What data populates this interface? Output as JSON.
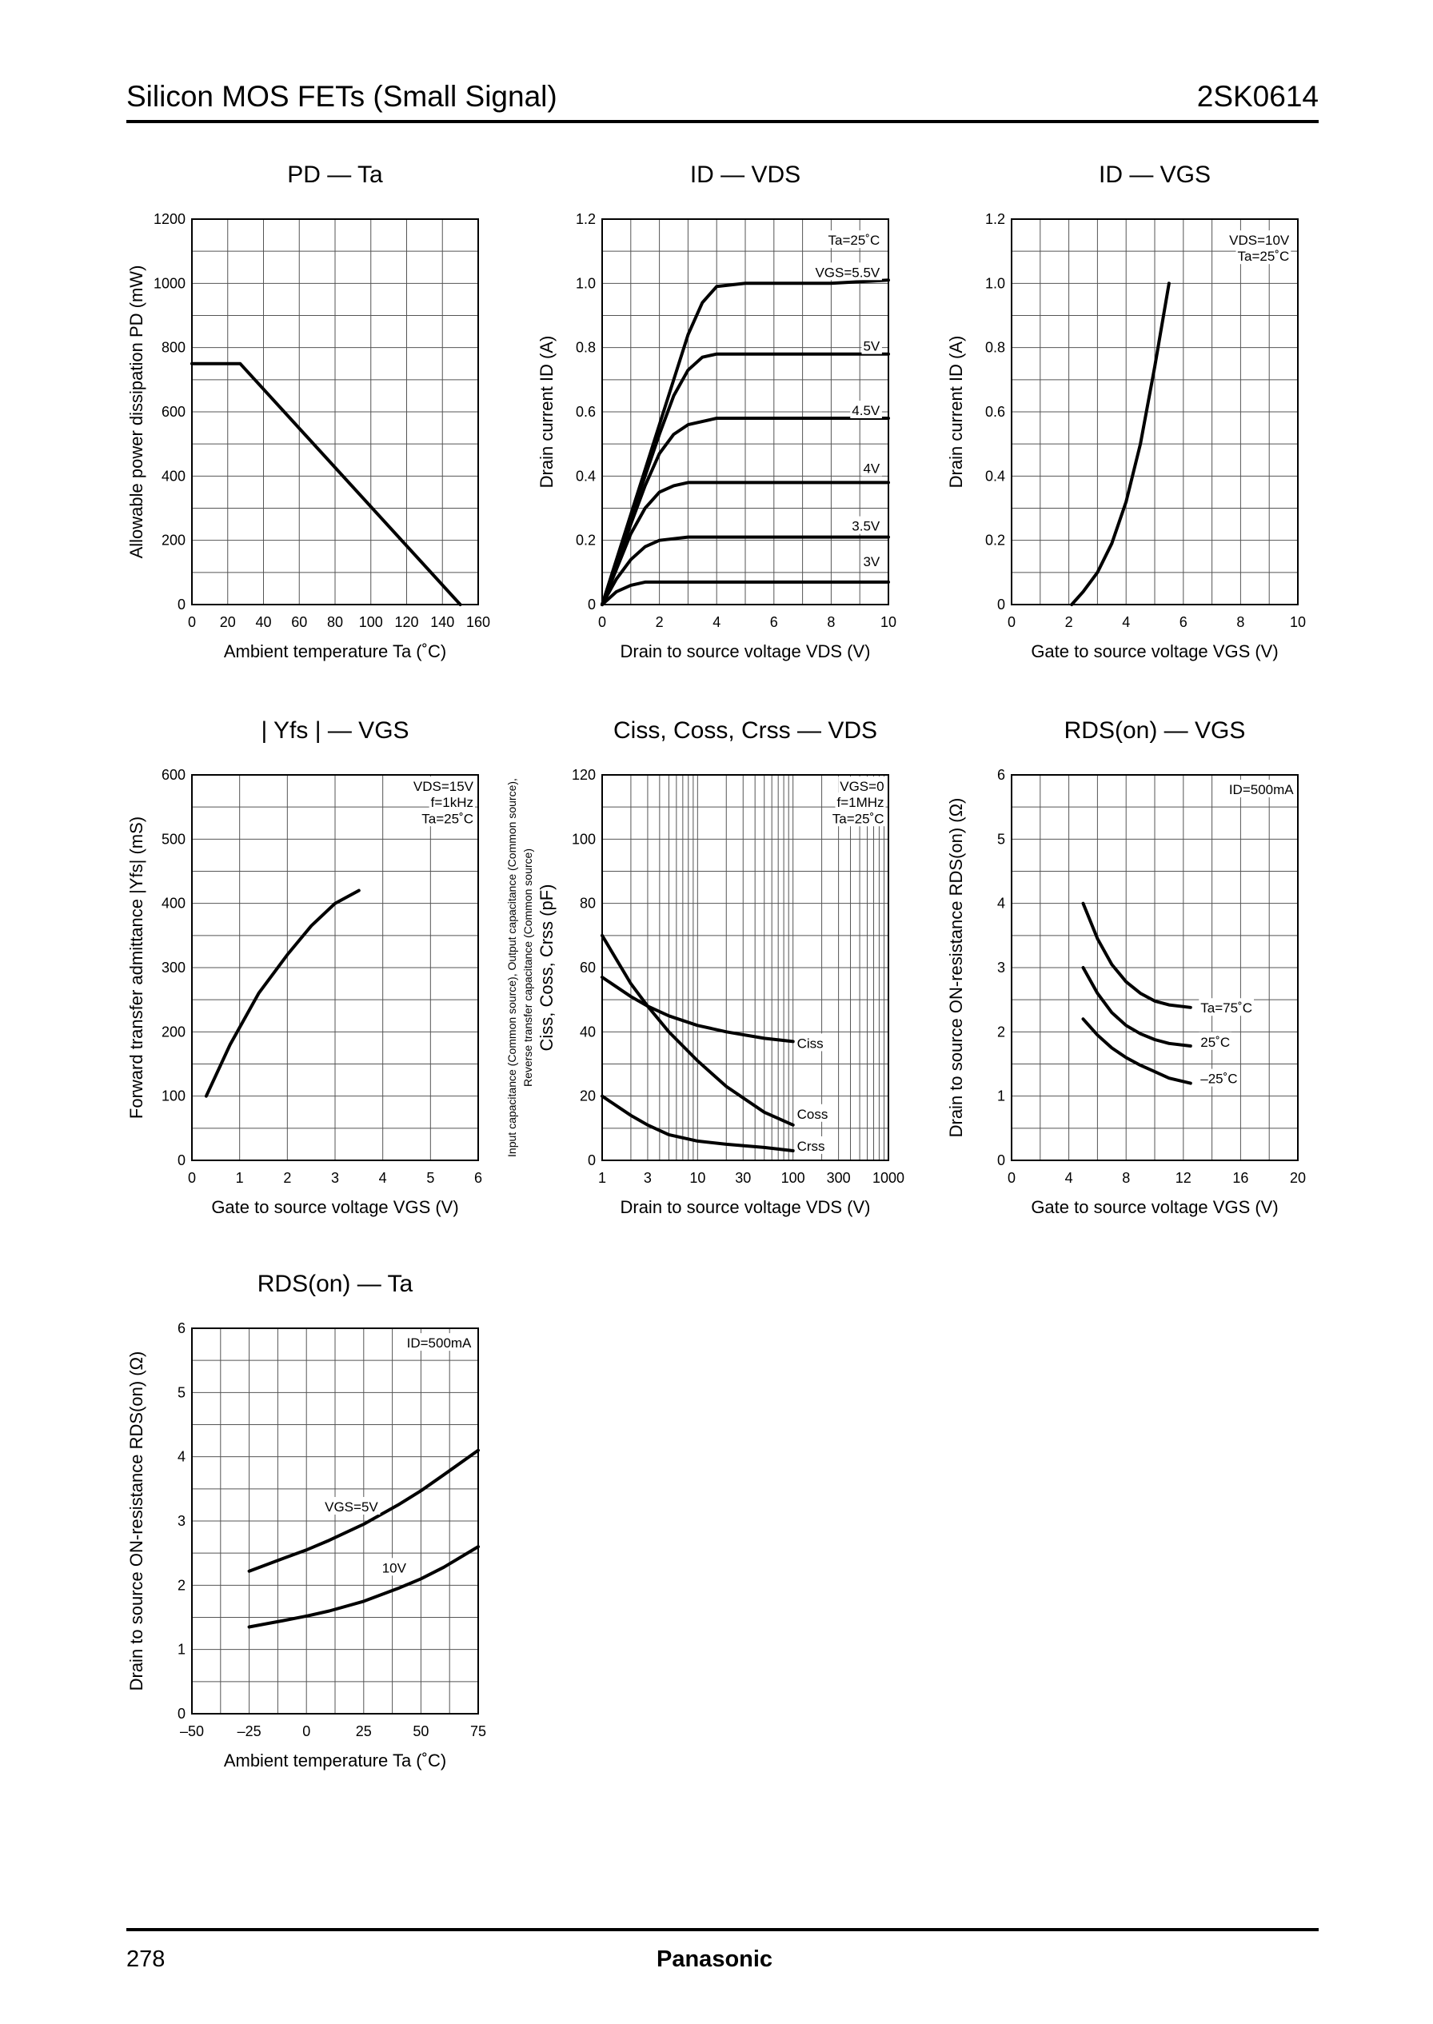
{
  "header": {
    "title": "Silicon MOS FETs (Small Signal)",
    "part_number": "2SK0614"
  },
  "footer": {
    "page_number": "278",
    "brand": "Panasonic"
  },
  "chart_data": [
    {
      "id": "pd_ta",
      "type": "line",
      "title": "PD — Ta",
      "xlabel": "Ambient temperature   Ta  (˚C)",
      "ylabel": "Allowable power dissipation   PD  (mW)",
      "xlim": [
        0,
        160
      ],
      "ylim": [
        0,
        1200
      ],
      "x_ticks": [
        "0",
        "20",
        "40",
        "60",
        "80",
        "100",
        "120",
        "140",
        "160"
      ],
      "y_ticks": [
        "0",
        "200",
        "400",
        "600",
        "800",
        "1000",
        "1200"
      ],
      "grid_cols": 8,
      "grid_rows": 12,
      "series": [
        {
          "name": "PD",
          "x": [
            0,
            27,
            150
          ],
          "y": [
            750,
            750,
            0
          ]
        }
      ],
      "annotations": []
    },
    {
      "id": "id_vds",
      "type": "line",
      "title": "ID — VDS",
      "xlabel": "Drain to source voltage   VDS  (V)",
      "ylabel": "Drain current   ID  (A)",
      "xlim": [
        0,
        10
      ],
      "ylim": [
        0,
        1.2
      ],
      "x_ticks": [
        "0",
        "2",
        "4",
        "6",
        "8",
        "10"
      ],
      "y_ticks": [
        "0",
        "0.2",
        "0.4",
        "0.6",
        "0.8",
        "1.0",
        "1.2"
      ],
      "grid_cols": 10,
      "grid_rows": 12,
      "series": [
        {
          "name": "VGS=5.5V",
          "x": [
            0,
            0.5,
            1,
            1.5,
            2,
            2.5,
            3,
            3.5,
            4,
            5,
            6,
            8,
            10
          ],
          "y": [
            0,
            0.14,
            0.28,
            0.42,
            0.56,
            0.7,
            0.84,
            0.94,
            0.99,
            1.0,
            1.0,
            1.0,
            1.01
          ]
        },
        {
          "name": "5V",
          "x": [
            0,
            0.5,
            1,
            1.5,
            2,
            2.5,
            3,
            3.5,
            4,
            5,
            6,
            8,
            10
          ],
          "y": [
            0,
            0.13,
            0.27,
            0.4,
            0.53,
            0.65,
            0.73,
            0.77,
            0.78,
            0.78,
            0.78,
            0.78,
            0.78
          ]
        },
        {
          "name": "4.5V",
          "x": [
            0,
            0.5,
            1,
            1.5,
            2,
            2.5,
            3,
            4,
            5,
            6,
            8,
            10
          ],
          "y": [
            0,
            0.12,
            0.25,
            0.37,
            0.47,
            0.53,
            0.56,
            0.58,
            0.58,
            0.58,
            0.58,
            0.58
          ]
        },
        {
          "name": "4V",
          "x": [
            0,
            0.5,
            1,
            1.5,
            2,
            2.5,
            3,
            4,
            6,
            8,
            10
          ],
          "y": [
            0,
            0.11,
            0.22,
            0.3,
            0.35,
            0.37,
            0.38,
            0.38,
            0.38,
            0.38,
            0.38
          ]
        },
        {
          "name": "3.5V",
          "x": [
            0,
            0.5,
            1,
            1.5,
            2,
            3,
            4,
            6,
            8,
            10
          ],
          "y": [
            0,
            0.08,
            0.14,
            0.18,
            0.2,
            0.21,
            0.21,
            0.21,
            0.21,
            0.21
          ]
        },
        {
          "name": "3V",
          "x": [
            0,
            0.5,
            1,
            1.5,
            2,
            3,
            4,
            6,
            8,
            10
          ],
          "y": [
            0,
            0.04,
            0.06,
            0.07,
            0.07,
            0.07,
            0.07,
            0.07,
            0.07,
            0.07
          ]
        }
      ],
      "annotations": [
        {
          "text": "Ta=25˚C",
          "x": 9.7,
          "y": 1.12
        },
        {
          "text": "VGS=5.5V",
          "x": 9.7,
          "y": 1.02
        },
        {
          "text": "5V",
          "x": 9.7,
          "y": 0.79
        },
        {
          "text": "4.5V",
          "x": 9.7,
          "y": 0.59
        },
        {
          "text": "4V",
          "x": 9.7,
          "y": 0.41
        },
        {
          "text": "3.5V",
          "x": 9.7,
          "y": 0.23
        },
        {
          "text": "3V",
          "x": 9.7,
          "y": 0.12
        }
      ]
    },
    {
      "id": "id_vgs",
      "type": "line",
      "title": "ID — VGS",
      "xlabel": "Gate to source voltage   VGS  (V)",
      "ylabel": "Drain current   ID  (A)",
      "xlim": [
        0,
        10
      ],
      "ylim": [
        0,
        1.2
      ],
      "x_ticks": [
        "0",
        "2",
        "4",
        "6",
        "8",
        "10"
      ],
      "y_ticks": [
        "0",
        "0.2",
        "0.4",
        "0.6",
        "0.8",
        "1.0",
        "1.2"
      ],
      "grid_cols": 10,
      "grid_rows": 12,
      "series": [
        {
          "name": "ID",
          "x": [
            2.1,
            2.5,
            3,
            3.5,
            4,
            4.5,
            5,
            5.5
          ],
          "y": [
            0,
            0.04,
            0.1,
            0.19,
            0.32,
            0.5,
            0.74,
            1.0
          ]
        }
      ],
      "annotations": [
        {
          "text": "VDS=10V",
          "x": 9.7,
          "y": 1.12
        },
        {
          "text": "Ta=25˚C",
          "x": 9.7,
          "y": 1.07
        }
      ]
    },
    {
      "id": "yfs_vgs",
      "type": "line",
      "title": "| Yfs | — VGS",
      "xlabel": "Gate to source voltage   VGS  (V)",
      "ylabel": "Forward transfer admittance   |Yfs|  (mS)",
      "xlim": [
        0,
        6
      ],
      "ylim": [
        0,
        600
      ],
      "x_ticks": [
        "0",
        "1",
        "2",
        "3",
        "4",
        "5",
        "6"
      ],
      "y_ticks": [
        "0",
        "100",
        "200",
        "300",
        "400",
        "500",
        "600"
      ],
      "grid_cols": 6,
      "grid_rows": 12,
      "series": [
        {
          "name": "|Yfs|",
          "x": [
            0.3,
            0.8,
            1.4,
            2.0,
            2.5,
            3.0,
            3.5
          ],
          "y": [
            100,
            180,
            260,
            320,
            365,
            400,
            420
          ]
        }
      ],
      "annotations": [
        {
          "text": "VDS=15V",
          "x": 5.9,
          "y": 575
        },
        {
          "text": "f=1kHz",
          "x": 5.9,
          "y": 550
        },
        {
          "text": "Ta=25˚C",
          "x": 5.9,
          "y": 525
        }
      ]
    },
    {
      "id": "cap_vds",
      "type": "line",
      "title": "Ciss, Coss, Crss — VDS",
      "xlabel": "Drain to source voltage   VDS  (V)",
      "ylabel": "Ciss, Coss, Crss  (pF)",
      "ylabel_note_1": "Input capacitance (Common source), Output capacitance (Common source),",
      "ylabel_note_2": "Reverse transfer capacitance (Common source)",
      "x_scale": "log",
      "xlim": [
        1,
        1000
      ],
      "ylim": [
        0,
        120
      ],
      "x_ticks": [
        "1",
        "3",
        "10",
        "30",
        "100",
        "300",
        "1000"
      ],
      "y_ticks": [
        "0",
        "20",
        "40",
        "60",
        "80",
        "100",
        "120"
      ],
      "grid_rows": 12,
      "series": [
        {
          "name": "Ciss",
          "x": [
            1,
            2,
            3,
            5,
            10,
            20,
            50,
            100
          ],
          "y": [
            57,
            51,
            48,
            45,
            42,
            40,
            38,
            37
          ]
        },
        {
          "name": "Coss",
          "x": [
            1,
            2,
            3,
            5,
            10,
            20,
            50,
            100
          ],
          "y": [
            70,
            55,
            48,
            40,
            31,
            23,
            15,
            11
          ]
        },
        {
          "name": "Crss",
          "x": [
            1,
            2,
            3,
            5,
            10,
            20,
            50,
            100
          ],
          "y": [
            20,
            14,
            11,
            8,
            6,
            5,
            4,
            3
          ]
        }
      ],
      "annotations": [
        {
          "text": "VGS=0",
          "x": 900,
          "y": 115
        },
        {
          "text": "f=1MHz",
          "x": 900,
          "y": 110
        },
        {
          "text": "Ta=25˚C",
          "x": 900,
          "y": 105
        },
        {
          "text": "Ciss",
          "x": 110,
          "y": 35
        },
        {
          "text": "Coss",
          "x": 110,
          "y": 13
        },
        {
          "text": "Crss",
          "x": 110,
          "y": 3
        }
      ]
    },
    {
      "id": "rds_vgs",
      "type": "line",
      "title": "RDS(on) — VGS",
      "xlabel": "Gate to source voltage   VGS  (V)",
      "ylabel": "Drain to source ON-resistance   RDS(on)  (Ω)",
      "xlim": [
        0,
        20
      ],
      "ylim": [
        0,
        6
      ],
      "x_ticks": [
        "0",
        "4",
        "8",
        "12",
        "16",
        "20"
      ],
      "y_ticks": [
        "0",
        "1",
        "2",
        "3",
        "4",
        "5",
        "6"
      ],
      "grid_cols": 10,
      "grid_rows": 12,
      "series": [
        {
          "name": "Ta=75˚C",
          "x": [
            5,
            6,
            7,
            8,
            9,
            10,
            11,
            12.5
          ],
          "y": [
            4.0,
            3.45,
            3.05,
            2.78,
            2.6,
            2.48,
            2.42,
            2.38
          ]
        },
        {
          "name": "25˚C",
          "x": [
            5,
            6,
            7,
            8,
            9,
            10,
            11,
            12.5
          ],
          "y": [
            3.0,
            2.6,
            2.3,
            2.1,
            1.97,
            1.88,
            1.82,
            1.78
          ]
        },
        {
          "name": "–25˚C",
          "x": [
            5,
            6,
            7,
            8,
            9,
            10,
            11,
            12.5
          ],
          "y": [
            2.2,
            1.95,
            1.75,
            1.6,
            1.48,
            1.38,
            1.28,
            1.2
          ]
        }
      ],
      "annotations": [
        {
          "text": "ID=500mA",
          "x": 19.7,
          "y": 5.7
        },
        {
          "text": "Ta=75˚C",
          "x": 13.2,
          "y": 2.3
        },
        {
          "text": "25˚C",
          "x": 13.2,
          "y": 1.77
        },
        {
          "text": "–25˚C",
          "x": 13.2,
          "y": 1.2
        }
      ]
    },
    {
      "id": "rds_ta",
      "type": "line",
      "title": "RDS(on) — Ta",
      "xlabel": "Ambient temperature   Ta  (˚C)",
      "ylabel": "Drain to source ON-resistance   RDS(on)  (Ω)",
      "xlim": [
        -50,
        75
      ],
      "ylim": [
        0,
        6
      ],
      "x_ticks": [
        "–50",
        "–25",
        "0",
        "25",
        "50",
        "75"
      ],
      "y_ticks": [
        "0",
        "1",
        "2",
        "3",
        "4",
        "5",
        "6"
      ],
      "grid_cols": 10,
      "grid_rows": 12,
      "series": [
        {
          "name": "VGS=5V",
          "x": [
            -25,
            -10,
            0,
            10,
            25,
            40,
            50,
            60,
            75
          ],
          "y": [
            2.22,
            2.42,
            2.55,
            2.7,
            2.95,
            3.25,
            3.47,
            3.72,
            4.1
          ]
        },
        {
          "name": "10V",
          "x": [
            -25,
            -10,
            0,
            10,
            25,
            40,
            50,
            60,
            75
          ],
          "y": [
            1.35,
            1.45,
            1.52,
            1.6,
            1.75,
            1.95,
            2.1,
            2.28,
            2.6
          ]
        }
      ],
      "annotations": [
        {
          "text": "ID=500mA",
          "x": 72,
          "y": 5.7
        },
        {
          "text": "VGS=5V",
          "x": 8,
          "y": 3.15
        },
        {
          "text": "10V",
          "x": 33,
          "y": 2.2
        }
      ]
    }
  ]
}
